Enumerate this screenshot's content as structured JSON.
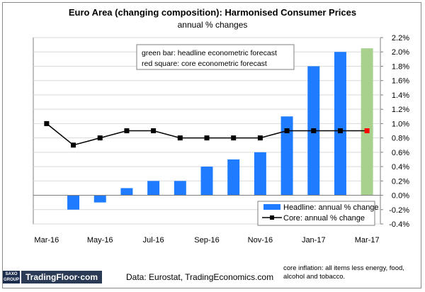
{
  "chart_data": {
    "type": "bar",
    "title": "Euro Area (changing composition): Harmonised Consumer Prices",
    "subtitle": "annual % changes",
    "categories": [
      "Mar-16",
      "Apr-16",
      "May-16",
      "Jun-16",
      "Jul-16",
      "Aug-16",
      "Sep-16",
      "Oct-16",
      "Nov-16",
      "Dec-16",
      "Jan-17",
      "Feb-17",
      "Mar-17"
    ],
    "x_tick_labels": [
      "Mar-16",
      "May-16",
      "Jul-16",
      "Sep-16",
      "Nov-16",
      "Jan-17",
      "Mar-17"
    ],
    "y_tick_labels": [
      "-0.4%",
      "-0.2%",
      "0.0%",
      "0.2%",
      "0.4%",
      "0.6%",
      "0.8%",
      "1.0%",
      "1.2%",
      "1.4%",
      "1.6%",
      "1.8%",
      "2.0%",
      "2.2%"
    ],
    "ylim": [
      -0.4,
      2.2
    ],
    "y_axis_position": "right",
    "grid": true,
    "series": [
      {
        "name": "Headline: annual % change",
        "type": "bar",
        "color": "#1f7bff",
        "values": [
          null,
          -0.2,
          -0.1,
          0.1,
          0.2,
          0.2,
          0.4,
          0.5,
          0.6,
          1.1,
          1.8,
          2.0,
          null
        ]
      },
      {
        "name": "headline econometric forecast",
        "type": "bar",
        "color": "#a9d18e",
        "values": [
          null,
          null,
          null,
          null,
          null,
          null,
          null,
          null,
          null,
          null,
          null,
          null,
          2.05
        ]
      },
      {
        "name": "Core: annual % change",
        "type": "line",
        "color": "#000000",
        "values": [
          1.0,
          0.7,
          0.8,
          0.9,
          0.9,
          0.8,
          0.8,
          0.8,
          0.8,
          0.9,
          0.9,
          0.9,
          null
        ]
      },
      {
        "name": "core econometric forecast",
        "type": "marker",
        "color": "#ff0000",
        "values": [
          null,
          null,
          null,
          null,
          null,
          null,
          null,
          null,
          null,
          null,
          null,
          null,
          0.9
        ]
      }
    ],
    "note_lines": [
      "green bar: headline econometric forecast",
      "red square: core econometric forecast"
    ],
    "legend_placement": "bottom-right"
  },
  "footer": {
    "logo_top": "SAXO",
    "logo_bottom": "GROUP",
    "brand": "TradingFloor·com",
    "source": "Data: Eurostat,  TradingEconomics.com",
    "core_note": "core inflation: all items less energy, food, alcohol and tobacco."
  }
}
